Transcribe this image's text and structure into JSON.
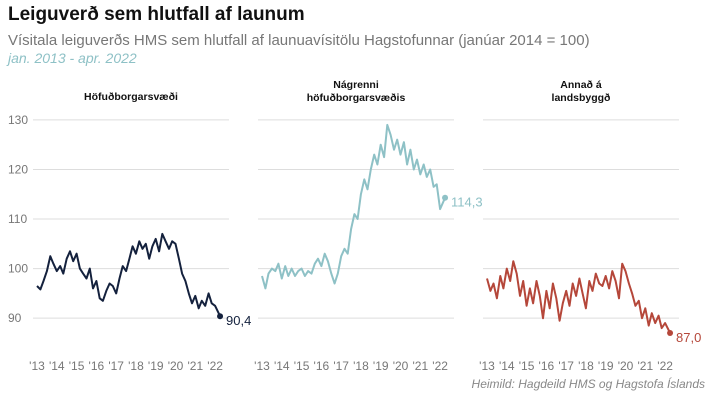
{
  "title": "Leiguverð sem hlutfall af launum",
  "subtitle": "Vísitala leiguverðs HMS sem hlutfall af launuavísitölu Hagstofunnar (janúar 2014 = 100)",
  "period": "jan. 2013 - apr. 2022",
  "source": "Heimild: Hagdeild HMS og Hagstofa Íslands",
  "chart_data": {
    "type": "line",
    "ylim": [
      86,
      132
    ],
    "yticks": [
      90,
      100,
      110,
      120,
      130
    ],
    "xlim": [
      2013,
      2022.5
    ],
    "xticks": [
      2013,
      2014,
      2015,
      2016,
      2017,
      2018,
      2019,
      2020,
      2021,
      2022
    ],
    "xtick_labels": [
      "'13",
      "'14",
      "'15",
      "'16",
      "'17",
      "'18",
      "'19",
      "'20",
      "'21",
      "'22"
    ],
    "grid": "horizontal",
    "panels": [
      {
        "title": [
          "Höfuðborgarsvæði"
        ],
        "color": "#14213d",
        "end_label": "90,4",
        "x": [
          2013.0,
          2013.17,
          2013.33,
          2013.5,
          2013.67,
          2013.83,
          2014.0,
          2014.17,
          2014.33,
          2014.5,
          2014.67,
          2014.83,
          2015.0,
          2015.17,
          2015.33,
          2015.5,
          2015.67,
          2015.83,
          2016.0,
          2016.17,
          2016.33,
          2016.5,
          2016.67,
          2016.83,
          2017.0,
          2017.17,
          2017.33,
          2017.5,
          2017.67,
          2017.83,
          2018.0,
          2018.17,
          2018.33,
          2018.5,
          2018.67,
          2018.83,
          2019.0,
          2019.17,
          2019.33,
          2019.5,
          2019.67,
          2019.83,
          2020.0,
          2020.17,
          2020.33,
          2020.5,
          2020.67,
          2020.83,
          2021.0,
          2021.17,
          2021.33,
          2021.5,
          2021.67,
          2021.83,
          2022.0,
          2022.25
        ],
        "y": [
          96.5,
          95.8,
          97.5,
          99.5,
          102.5,
          101.0,
          99.5,
          100.5,
          99.0,
          102.0,
          103.5,
          101.5,
          103.0,
          100.0,
          99.0,
          98.0,
          100.0,
          96.0,
          97.5,
          94.0,
          93.5,
          95.5,
          97.0,
          96.5,
          95.0,
          98.0,
          100.5,
          99.5,
          102.0,
          104.5,
          103.0,
          105.5,
          104.0,
          105.0,
          102.0,
          104.5,
          106.0,
          103.5,
          107.0,
          105.5,
          104.0,
          105.5,
          105.0,
          102.0,
          99.0,
          97.5,
          95.0,
          93.0,
          94.5,
          92.0,
          93.5,
          92.5,
          95.0,
          93.0,
          92.5,
          90.4
        ]
      },
      {
        "title": [
          "Nágrenni",
          "höfuðborgarsvæðis"
        ],
        "color": "#8ec1c6",
        "end_label": "114,3",
        "x": [
          2013.0,
          2013.17,
          2013.33,
          2013.5,
          2013.67,
          2013.83,
          2014.0,
          2014.17,
          2014.33,
          2014.5,
          2014.67,
          2014.83,
          2015.0,
          2015.17,
          2015.33,
          2015.5,
          2015.67,
          2015.83,
          2016.0,
          2016.17,
          2016.33,
          2016.5,
          2016.67,
          2016.83,
          2017.0,
          2017.17,
          2017.33,
          2017.5,
          2017.67,
          2017.83,
          2018.0,
          2018.17,
          2018.33,
          2018.5,
          2018.67,
          2018.83,
          2019.0,
          2019.17,
          2019.33,
          2019.5,
          2019.67,
          2019.83,
          2020.0,
          2020.17,
          2020.33,
          2020.5,
          2020.67,
          2020.83,
          2021.0,
          2021.17,
          2021.33,
          2021.5,
          2021.67,
          2021.83,
          2022.0,
          2022.25
        ],
        "y": [
          98.5,
          96.0,
          99.0,
          100.0,
          99.5,
          101.0,
          98.0,
          100.5,
          98.5,
          100.0,
          98.5,
          99.5,
          100.0,
          98.5,
          99.5,
          99.0,
          101.0,
          102.0,
          100.5,
          103.0,
          101.5,
          99.0,
          97.0,
          99.0,
          102.5,
          104.0,
          103.0,
          108.0,
          111.0,
          110.0,
          115.0,
          118.0,
          116.0,
          120.0,
          123.0,
          121.0,
          125.0,
          122.5,
          129.0,
          127.0,
          124.0,
          126.0,
          123.0,
          125.5,
          121.0,
          124.0,
          120.0,
          122.0,
          119.0,
          121.0,
          118.5,
          120.0,
          116.5,
          117.0,
          112.0,
          114.3
        ]
      },
      {
        "title": [
          "Annað á",
          "landsbyggð"
        ],
        "color": "#b5473a",
        "end_label": "87,0",
        "x": [
          2013.0,
          2013.17,
          2013.33,
          2013.5,
          2013.67,
          2013.83,
          2014.0,
          2014.17,
          2014.33,
          2014.5,
          2014.67,
          2014.83,
          2015.0,
          2015.17,
          2015.33,
          2015.5,
          2015.67,
          2015.83,
          2016.0,
          2016.17,
          2016.33,
          2016.5,
          2016.67,
          2016.83,
          2017.0,
          2017.17,
          2017.33,
          2017.5,
          2017.67,
          2017.83,
          2018.0,
          2018.17,
          2018.33,
          2018.5,
          2018.67,
          2018.83,
          2019.0,
          2019.17,
          2019.33,
          2019.5,
          2019.67,
          2019.83,
          2020.0,
          2020.17,
          2020.33,
          2020.5,
          2020.67,
          2020.83,
          2021.0,
          2021.17,
          2021.33,
          2021.5,
          2021.67,
          2021.83,
          2022.0,
          2022.25
        ],
        "y": [
          98.0,
          95.5,
          97.0,
          94.0,
          98.5,
          96.0,
          100.0,
          97.5,
          101.5,
          99.0,
          94.5,
          97.5,
          92.5,
          96.0,
          93.0,
          97.5,
          94.5,
          90.0,
          95.5,
          92.0,
          97.0,
          94.0,
          89.5,
          93.0,
          95.5,
          92.5,
          97.0,
          94.5,
          98.0,
          95.0,
          92.0,
          97.5,
          95.5,
          99.0,
          97.0,
          96.5,
          98.5,
          96.0,
          99.5,
          97.5,
          94.0,
          101.0,
          99.5,
          97.0,
          95.0,
          92.5,
          93.5,
          90.0,
          92.0,
          88.5,
          91.0,
          89.0,
          90.5,
          88.0,
          89.0,
          87.0
        ]
      }
    ]
  }
}
